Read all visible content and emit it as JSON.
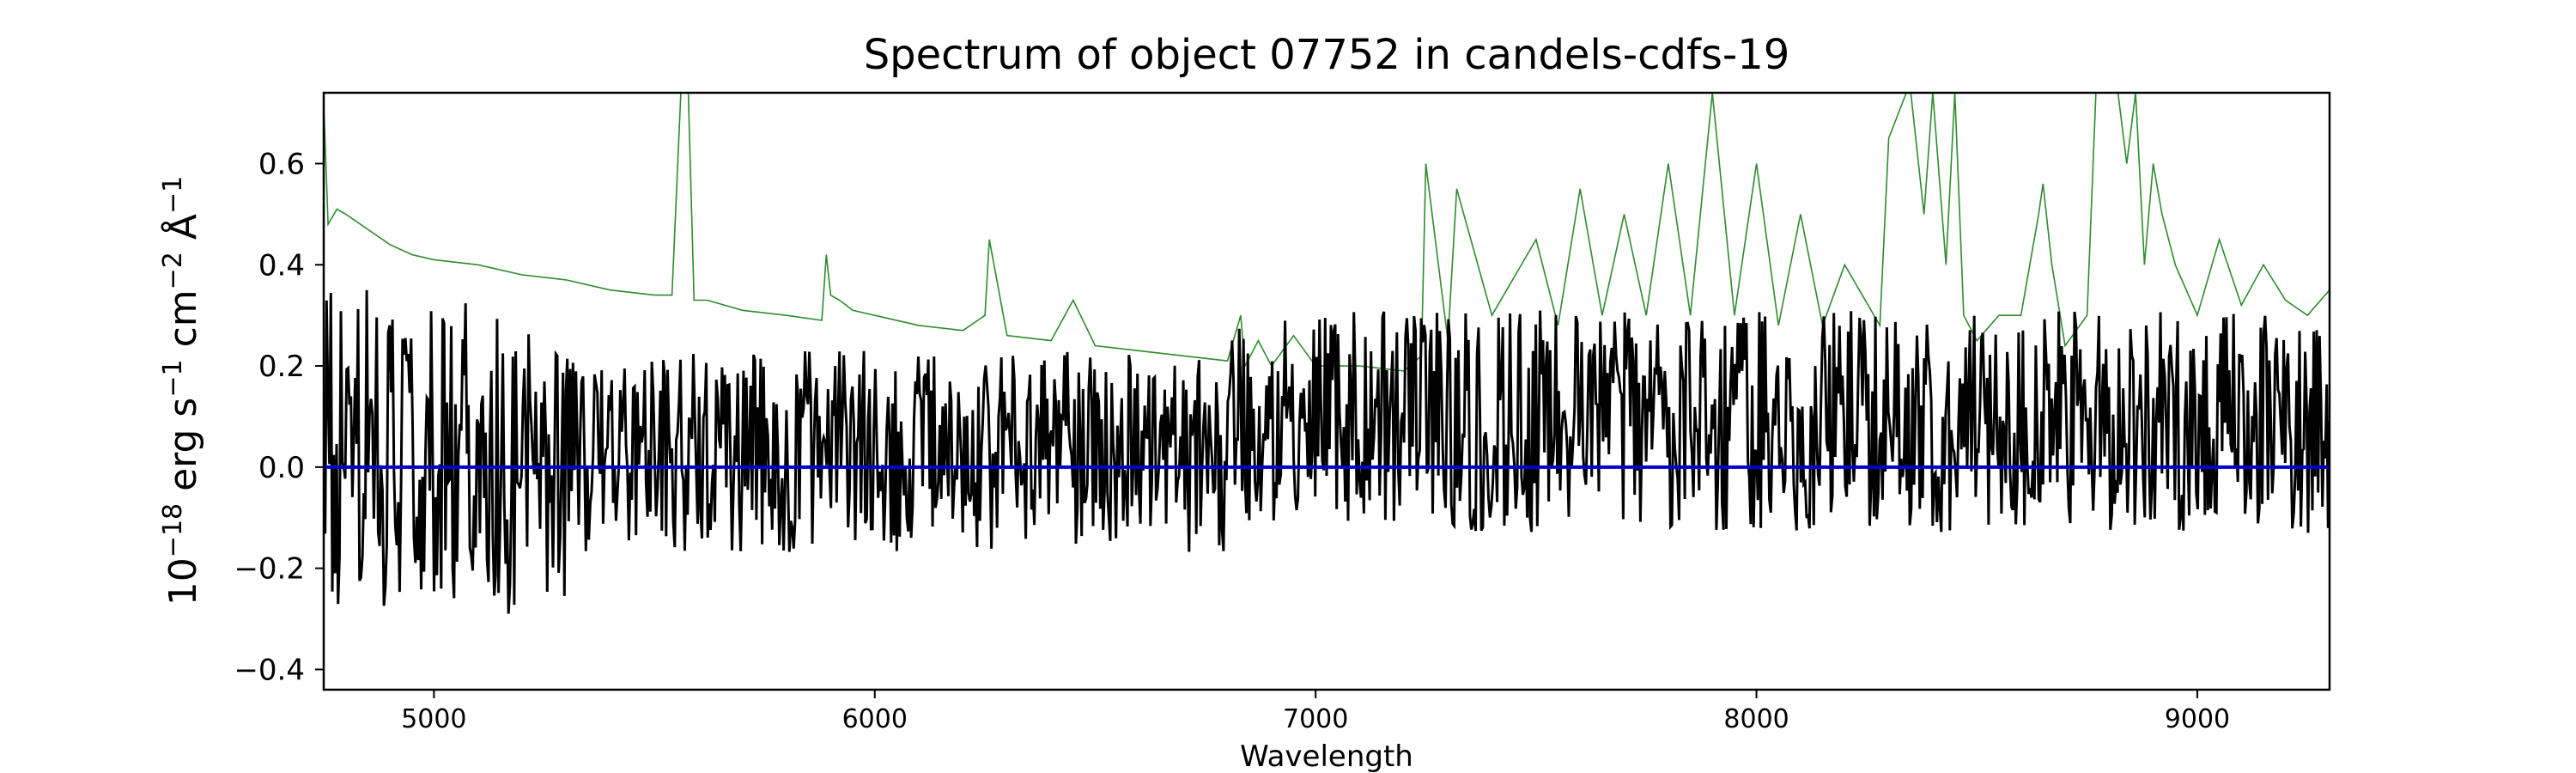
{
  "chart_data": {
    "type": "line",
    "title": "Spectrum of object 07752 in candels-cdfs-19",
    "xlabel": "Wavelength",
    "ylabel": {
      "prefix": "10",
      "exp1": "−18",
      "mid1": " erg s",
      "exp2": "−1",
      "mid2": " cm",
      "exp3": "−2",
      "mid3": " Å",
      "exp4": "−1"
    },
    "xlim": [
      4750,
      9300
    ],
    "ylim": [
      -0.44,
      0.74
    ],
    "xticks": [
      5000,
      6000,
      7000,
      8000,
      9000
    ],
    "xtick_labels": [
      "5000",
      "6000",
      "7000",
      "8000",
      "9000"
    ],
    "yticks": [
      -0.4,
      -0.2,
      0.0,
      0.2,
      0.4,
      0.6
    ],
    "ytick_labels": [
      "−0.4",
      "−0.2",
      "0.0",
      "0.2",
      "0.4",
      "0.6"
    ],
    "grid": false,
    "series": [
      {
        "role": "error",
        "color": "#2e8b2e",
        "x": [
          4750,
          4760,
          4780,
          4800,
          4850,
          4900,
          4950,
          5000,
          5100,
          5200,
          5300,
          5400,
          5500,
          5540,
          5560,
          5570,
          5577,
          5590,
          5620,
          5700,
          5800,
          5880,
          5890,
          5900,
          5920,
          5950,
          6000,
          6100,
          6200,
          6250,
          6260,
          6300,
          6400,
          6450,
          6500,
          6600,
          6700,
          6800,
          6830,
          6840,
          6870,
          6900,
          6950,
          7000,
          7100,
          7200,
          7240,
          7250,
          7300,
          7320,
          7400,
          7500,
          7550,
          7600,
          7650,
          7700,
          7750,
          7800,
          7850,
          7900,
          7950,
          8000,
          8050,
          8100,
          8150,
          8200,
          8280,
          8300,
          8340,
          8350,
          8380,
          8400,
          8430,
          8450,
          8470,
          8500,
          8550,
          8600,
          8640,
          8650,
          8670,
          8700,
          8750,
          8770,
          8780,
          8800,
          8820,
          8840,
          8860,
          8880,
          8900,
          8920,
          8950,
          9000,
          9050,
          9100,
          9150,
          9200,
          9250,
          9300
        ],
        "y": [
          0.72,
          0.48,
          0.51,
          0.5,
          0.47,
          0.44,
          0.42,
          0.41,
          0.4,
          0.38,
          0.37,
          0.35,
          0.34,
          0.34,
          0.74,
          0.74,
          0.74,
          0.33,
          0.33,
          0.31,
          0.3,
          0.29,
          0.42,
          0.34,
          0.33,
          0.31,
          0.3,
          0.28,
          0.27,
          0.3,
          0.45,
          0.26,
          0.25,
          0.33,
          0.24,
          0.23,
          0.22,
          0.21,
          0.3,
          0.2,
          0.25,
          0.2,
          0.26,
          0.2,
          0.2,
          0.19,
          0.22,
          0.6,
          0.25,
          0.55,
          0.3,
          0.45,
          0.28,
          0.55,
          0.3,
          0.5,
          0.3,
          0.6,
          0.3,
          0.74,
          0.3,
          0.6,
          0.28,
          0.5,
          0.28,
          0.4,
          0.28,
          0.65,
          0.74,
          0.74,
          0.5,
          0.74,
          0.4,
          0.74,
          0.3,
          0.25,
          0.3,
          0.3,
          0.5,
          0.56,
          0.4,
          0.24,
          0.3,
          0.74,
          0.74,
          0.74,
          0.74,
          0.6,
          0.74,
          0.4,
          0.6,
          0.5,
          0.4,
          0.3,
          0.45,
          0.32,
          0.4,
          0.33,
          0.3,
          0.35
        ]
      },
      {
        "role": "flux",
        "color": "#000000",
        "description": "noisy object flux, approx. mean 0.0–0.1, scatter ±0.3"
      },
      {
        "role": "zero",
        "color": "#0000cc",
        "x": [
          4750,
          9300
        ],
        "y": [
          0.0,
          0.0
        ]
      }
    ]
  }
}
